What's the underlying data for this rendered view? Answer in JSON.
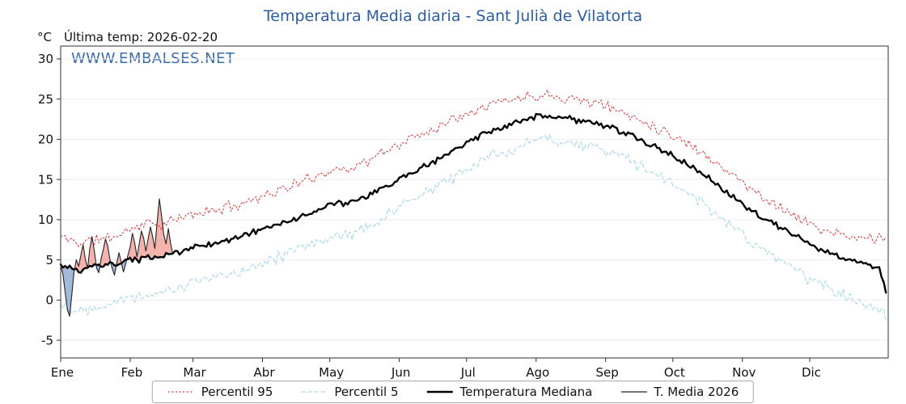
{
  "title": "Temperatura Media diaria - Sant Julià de Vilatorta",
  "annotations": {
    "unit": "°C",
    "last_temp": "Última temp: 2026-02-20",
    "watermark": "WWW.EMBALSES.NET"
  },
  "colors": {
    "title": "#2b5ca6",
    "watermark": "#3a6cb0",
    "percentil95": "#e03131",
    "percentil5": "#a8d8e8",
    "mediana": "#000000",
    "t_media_2026": "#222222",
    "fill_above": "rgba(235,118,108,0.55)",
    "fill_below": "rgba(100,140,190,0.60)",
    "grid": "#ededed",
    "spine": "#2f2f2f"
  },
  "chart_data": {
    "type": "line",
    "title": "Temperatura Media diaria - Sant Julià de Vilatorta",
    "xlabel": "",
    "ylabel": "°C",
    "annotation": "Última temp: 2026-02-20",
    "x_tick_labels": [
      "Ene",
      "Feb",
      "Mar",
      "Abr",
      "May",
      "Jun",
      "Jul",
      "Ago",
      "Sep",
      "Oct",
      "Nov",
      "Dic"
    ],
    "x_tick_days": [
      0,
      31,
      59,
      90,
      120,
      151,
      181,
      212,
      243,
      273,
      304,
      334
    ],
    "y_ticks": [
      -5,
      0,
      5,
      10,
      15,
      20,
      25,
      30
    ],
    "xlim": [
      0,
      369
    ],
    "ylim": [
      -7.2,
      31.6
    ],
    "grid": "horizontal-faint",
    "legend_position": "bottom-center",
    "legend": [
      {
        "label": "Percentil 95",
        "series": "percentil95",
        "style": "dotted"
      },
      {
        "label": "Percentil 5",
        "series": "percentil5",
        "style": "dashed"
      },
      {
        "label": "Temperatura Mediana",
        "series": "mediana",
        "style": "solid-thick"
      },
      {
        "label": "T. Media 2026",
        "series": "t_media_2026",
        "style": "solid-thin"
      }
    ],
    "anchor_days": [
      0,
      8,
      15,
      23,
      31,
      38,
      45,
      52,
      59,
      66,
      74,
      82,
      90,
      97,
      105,
      112,
      120,
      128,
      135,
      143,
      151,
      158,
      166,
      174,
      181,
      189,
      196,
      204,
      212,
      219,
      227,
      235,
      243,
      250,
      258,
      265,
      273,
      280,
      288,
      296,
      304,
      311,
      319,
      327,
      334,
      341,
      349,
      355,
      361,
      365,
      368
    ],
    "series": [
      {
        "id": "percentil95",
        "name": "Percentil 95",
        "anchor_values": [
          7.9,
          7.1,
          7.5,
          7.8,
          8.8,
          9.6,
          9.4,
          10.0,
          10.7,
          11.0,
          11.5,
          12.2,
          13.0,
          13.6,
          14.4,
          15.2,
          16.1,
          16.4,
          17.0,
          18.2,
          19.4,
          20.3,
          21.3,
          22.4,
          23.4,
          24.2,
          24.7,
          25.1,
          25.5,
          25.6,
          25.1,
          24.8,
          24.2,
          23.4,
          22.5,
          21.6,
          20.5,
          19.4,
          18.0,
          16.4,
          14.6,
          13.2,
          11.9,
          10.5,
          9.4,
          8.6,
          7.9,
          7.7,
          7.7,
          7.9,
          7.3
        ],
        "noise": 0.85
      },
      {
        "id": "percentil5",
        "name": "Percentil 5",
        "anchor_values": [
          -0.4,
          -1.3,
          -0.7,
          -0.2,
          0.4,
          0.7,
          0.9,
          1.5,
          2.2,
          2.6,
          3.1,
          3.9,
          4.8,
          5.3,
          6.1,
          6.9,
          7.9,
          8.2,
          8.8,
          10.1,
          11.5,
          12.6,
          13.8,
          15.1,
          16.4,
          17.4,
          18.2,
          19.1,
          19.9,
          20.1,
          19.6,
          19.2,
          18.6,
          17.8,
          16.8,
          15.7,
          14.4,
          13.3,
          11.6,
          9.9,
          8.1,
          6.6,
          5.2,
          3.8,
          2.7,
          1.7,
          0.7,
          0.1,
          -0.5,
          -1.2,
          -1.8
        ],
        "noise": 0.95
      },
      {
        "id": "mediana",
        "name": "Temperatura Mediana",
        "anchor_values": [
          4.3,
          3.6,
          4.2,
          4.4,
          4.9,
          5.2,
          5.4,
          5.9,
          6.6,
          6.9,
          7.4,
          8.1,
          8.9,
          9.4,
          10.1,
          10.9,
          11.9,
          12.1,
          12.6,
          13.8,
          15.0,
          16.1,
          17.2,
          18.4,
          19.6,
          20.6,
          21.3,
          22.1,
          22.8,
          22.9,
          22.5,
          22.2,
          21.7,
          20.9,
          20.0,
          19.0,
          17.9,
          16.9,
          15.3,
          13.7,
          12.0,
          10.6,
          9.3,
          8.0,
          7.0,
          6.1,
          5.2,
          4.8,
          4.4,
          3.8,
          1.0
        ],
        "noise": 0.45
      },
      {
        "id": "t_media_2026",
        "name": "T. Media 2026",
        "start_day": 0,
        "daily_values": [
          4.3,
          3.2,
          1.0,
          -1.2,
          -2.0,
          0.8,
          3.6,
          5.0,
          4.2,
          5.6,
          6.9,
          5.1,
          3.9,
          6.4,
          7.9,
          6.1,
          4.0,
          3.4,
          5.1,
          6.3,
          7.6,
          6.7,
          5.0,
          3.9,
          3.1,
          4.6,
          5.9,
          4.7,
          3.5,
          4.5,
          5.6,
          6.6,
          8.3,
          7.1,
          5.4,
          6.9,
          8.6,
          7.7,
          6.1,
          7.6,
          9.1,
          7.9,
          6.4,
          9.6,
          12.6,
          10.4,
          8.1,
          7.0,
          8.9,
          7.1,
          5.7
        ]
      }
    ],
    "fill_between": {
      "series_a": "t_media_2026",
      "series_b": "mediana",
      "above": "fill_above",
      "below": "fill_below"
    }
  }
}
